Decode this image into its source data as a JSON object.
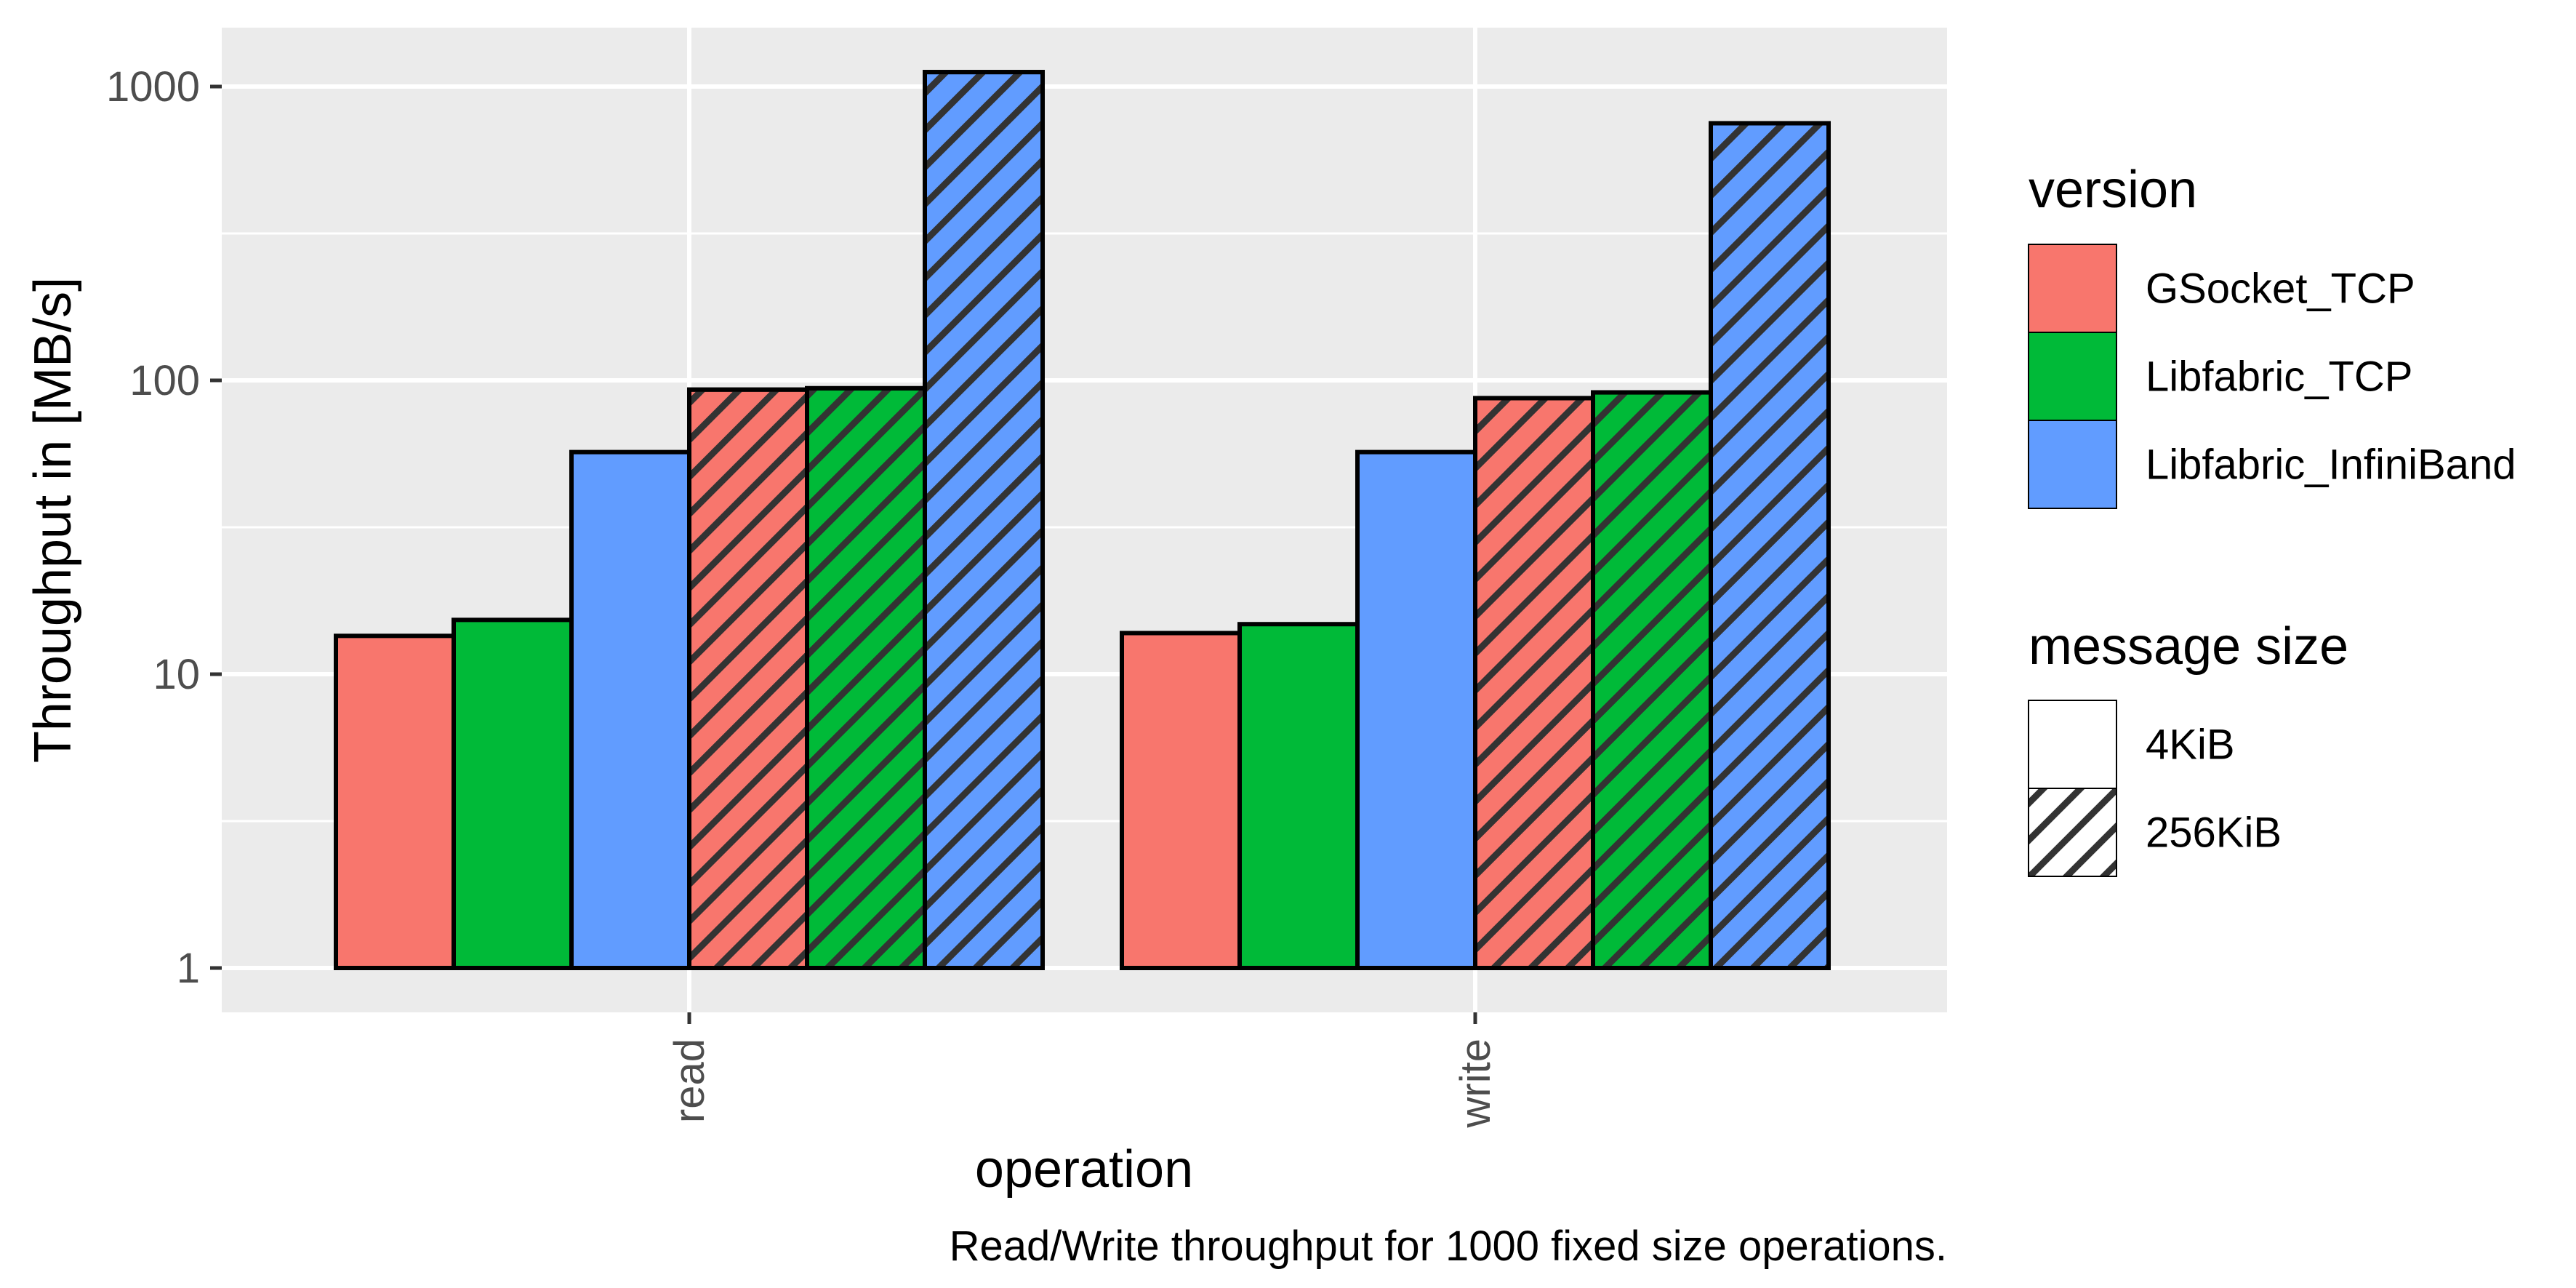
{
  "chart_data": {
    "type": "bar",
    "categories": [
      "read",
      "write"
    ],
    "series": [
      {
        "name": "GSocket_TCP",
        "version": "GSocket_TCP",
        "message_size": "4KiB",
        "values": [
          13.5,
          13.8
        ]
      },
      {
        "name": "Libfabric_TCP",
        "version": "Libfabric_TCP",
        "message_size": "4KiB",
        "values": [
          15.3,
          14.8
        ]
      },
      {
        "name": "Libfabric_InfiniBand",
        "version": "Libfabric_InfiniBand",
        "message_size": "4KiB",
        "values": [
          57,
          57
        ]
      },
      {
        "name": "GSocket_TCP",
        "version": "GSocket_TCP",
        "message_size": "256KiB",
        "values": [
          93,
          87
        ]
      },
      {
        "name": "Libfabric_TCP",
        "version": "Libfabric_TCP",
        "message_size": "256KiB",
        "values": [
          94,
          91
        ]
      },
      {
        "name": "Libfabric_InfiniBand",
        "version": "Libfabric_InfiniBand",
        "message_size": "256KiB",
        "values": [
          1120,
          750
        ]
      }
    ],
    "xlabel": "operation",
    "ylabel": "Throughput in [MB/s]",
    "yscale": "log",
    "ylim": [
      0.8,
      1400
    ],
    "yticks": [
      1,
      10,
      100,
      1000
    ],
    "ytick_labels": [
      "1",
      "10",
      "100",
      "1000"
    ],
    "bar_baseline": 1,
    "grid": true,
    "caption": "Read/Write throughput for 1000 fixed size operations.",
    "legend_placement": "right",
    "legends": [
      {
        "title": "version",
        "entries": [
          {
            "label": "GSocket_TCP",
            "color": "#F8766D"
          },
          {
            "label": "Libfabric_TCP",
            "color": "#00BA38"
          },
          {
            "label": "Libfabric_InfiniBand",
            "color": "#619CFF"
          }
        ]
      },
      {
        "title": "message size",
        "entries": [
          {
            "label": "4KiB",
            "pattern": "none"
          },
          {
            "label": "256KiB",
            "pattern": "stripe"
          }
        ]
      }
    ]
  },
  "colors": {
    "panel_background": "#EBEBEB",
    "grid_major": "#FFFFFF",
    "bar_outline": "#000000",
    "stripe": "#333333",
    "GSocket_TCP": "#F8766D",
    "Libfabric_TCP": "#00BA38",
    "Libfabric_InfiniBand": "#619CFF"
  }
}
